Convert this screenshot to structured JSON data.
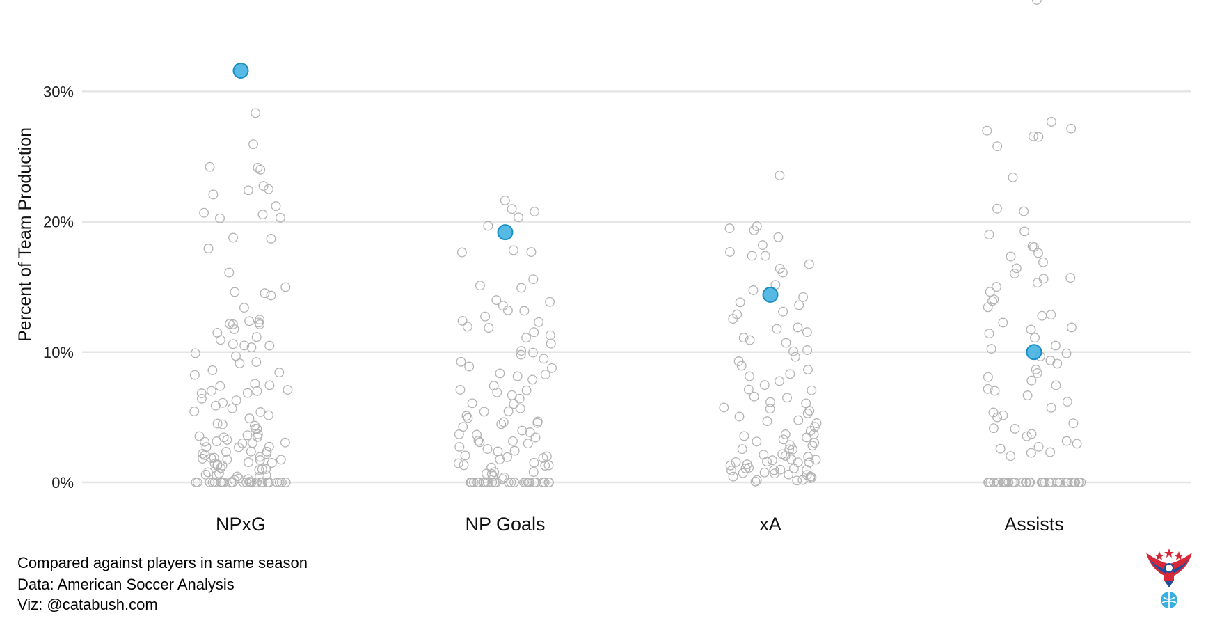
{
  "chart_data": {
    "type": "scatter",
    "subtype": "jittered strip plot",
    "ylabel": "Percent of Team Production",
    "xlabel": "",
    "ylim": [
      -1.5,
      37
    ],
    "yticks": [
      0,
      10,
      20,
      30
    ],
    "ytick_labels": [
      "0%",
      "10%",
      "20%",
      "30%"
    ],
    "categories": [
      "NPxG",
      "NP Goals",
      "xA",
      "Assists"
    ],
    "grid": "horizontal major gridlines",
    "legend": "none",
    "colors": {
      "highlight": "#3aaee0",
      "highlight_stroke": "#1a8fc4",
      "others": "#b3b3b3",
      "gridline": "#e5e5e5"
    },
    "highlight": {
      "name": "selected player",
      "values": [
        31.6,
        19.2,
        14.4,
        10.0
      ]
    },
    "others": [
      {
        "category": "NPxG",
        "values": [
          28.4,
          25.8,
          24.1,
          24.1,
          23.9,
          22.8,
          22.6,
          22.5,
          22.0,
          21.1,
          20.7,
          20.6,
          20.3,
          20.2,
          18.8,
          18.8,
          18.0,
          16.1,
          15.0,
          14.6,
          14.5,
          14.4,
          13.3,
          12.6,
          12.5,
          12.3,
          12.2,
          12.2,
          12.0,
          11.9,
          11.6,
          11.3,
          11.0,
          10.7,
          10.5,
          10.4,
          10.3,
          9.9,
          9.7,
          9.3,
          9.0,
          8.6,
          8.4,
          8.2,
          7.6,
          7.4,
          7.3,
          7.1,
          7.0,
          6.9,
          6.8,
          6.7,
          6.5,
          6.2,
          6.0,
          5.8,
          5.7,
          5.5,
          5.3,
          5.0,
          4.8,
          4.6,
          4.5,
          4.3,
          4.1,
          4.0,
          3.8,
          3.7,
          3.5,
          3.4,
          3.3,
          3.2,
          3.1,
          3.0,
          2.9,
          2.8,
          2.7,
          2.6,
          2.5,
          2.4,
          2.3,
          2.2,
          2.1,
          2.0,
          1.9,
          1.8,
          1.7,
          1.6,
          1.5,
          1.4,
          1.3,
          1.2,
          1.1,
          1.0,
          0.9,
          0.8,
          0.7,
          0.6,
          0.5,
          0.4,
          0.3,
          0.2,
          0.1,
          0,
          0,
          0,
          0,
          0,
          0,
          0,
          0,
          0,
          0,
          0,
          0,
          0,
          0,
          0,
          0,
          0,
          0,
          0,
          0,
          0,
          0,
          0,
          0,
          2.3,
          1.8,
          1.4,
          1.1,
          0.9,
          0.6,
          0.3,
          3.6,
          2.9,
          2.0,
          1.2
        ]
      },
      {
        "category": "NP Goals",
        "values": [
          21.6,
          21.1,
          20.8,
          20.3,
          19.8,
          17.8,
          17.7,
          17.5,
          15.5,
          15.2,
          14.8,
          14.0,
          13.8,
          13.5,
          13.2,
          13.1,
          12.8,
          12.5,
          12.3,
          12.0,
          11.8,
          11.5,
          11.2,
          11.0,
          10.6,
          10.2,
          10.0,
          9.8,
          9.5,
          9.2,
          9.0,
          8.8,
          8.5,
          8.3,
          8.0,
          7.8,
          7.5,
          7.2,
          7.0,
          6.8,
          6.5,
          6.2,
          6.0,
          5.8,
          5.5,
          5.2,
          5.0,
          4.8,
          4.5,
          4.2,
          4.0,
          3.8,
          3.6,
          3.4,
          3.2,
          3.0,
          2.8,
          2.6,
          2.4,
          2.2,
          2.0,
          1.8,
          1.6,
          1.4,
          1.2,
          1.0,
          0.8,
          0.6,
          0.4,
          0.2,
          0,
          0,
          0,
          0,
          0,
          0,
          0,
          0,
          0,
          0,
          0,
          0,
          0,
          0,
          0,
          0,
          0,
          0,
          0,
          0,
          0,
          0,
          0,
          0,
          0,
          0,
          0,
          3.9,
          3.1,
          2.5,
          1.9,
          1.3,
          0.7,
          4.4,
          3.3,
          2.1,
          1.5,
          0.9,
          0.5,
          6.6,
          5.6,
          4.7
        ]
      },
      {
        "category": "xA",
        "values": [
          23.7,
          19.7,
          19.6,
          19.2,
          18.7,
          18.1,
          17.6,
          17.4,
          17.3,
          16.8,
          16.5,
          16.1,
          15.3,
          14.8,
          14.3,
          13.8,
          13.5,
          13.0,
          12.8,
          12.5,
          12.0,
          11.8,
          11.5,
          11.0,
          10.8,
          10.6,
          10.2,
          10.0,
          9.7,
          9.4,
          9.0,
          8.7,
          8.4,
          8.1,
          7.8,
          7.5,
          7.2,
          7.0,
          6.7,
          6.4,
          6.1,
          5.8,
          5.5,
          5.2,
          5.0,
          4.7,
          4.4,
          4.1,
          3.8,
          3.6,
          3.4,
          3.2,
          3.0,
          2.8,
          2.6,
          2.4,
          2.2,
          2.0,
          1.9,
          1.8,
          1.7,
          1.6,
          1.5,
          1.4,
          1.3,
          1.2,
          1.1,
          1.0,
          0.9,
          0.8,
          0.7,
          0.6,
          0.5,
          0.4,
          0.3,
          0.2,
          0.1,
          0.2,
          0.3,
          0.4,
          0.5,
          0.6,
          0.8,
          1.0,
          1.2,
          1.4,
          1.6,
          1.8,
          2.1,
          2.5,
          2.9,
          3.3,
          3.7,
          4.2,
          4.8,
          5.4,
          6.0
        ]
      },
      {
        "category": "Assists",
        "values": [
          36.9,
          27.6,
          27.3,
          27.0,
          26.7,
          26.6,
          25.7,
          23.3,
          21.0,
          20.9,
          19.2,
          19.1,
          18.2,
          18.0,
          17.7,
          17.3,
          16.9,
          16.5,
          16.0,
          15.8,
          15.5,
          15.3,
          15.0,
          14.5,
          14.1,
          13.8,
          13.5,
          13.0,
          12.7,
          12.2,
          12.0,
          11.7,
          11.4,
          11.0,
          10.6,
          10.3,
          10.0,
          9.6,
          9.3,
          9.0,
          8.8,
          8.5,
          8.2,
          7.9,
          7.6,
          7.3,
          7.0,
          6.6,
          6.2,
          5.8,
          5.3,
          5.2,
          4.9,
          4.6,
          4.3,
          4.0,
          3.8,
          3.5,
          3.2,
          3.0,
          2.8,
          2.6,
          2.4,
          2.2,
          2.0,
          0,
          0,
          0,
          0,
          0,
          0,
          0,
          0,
          0,
          0,
          0,
          0,
          0,
          0,
          0,
          0,
          0,
          0,
          0,
          0,
          0,
          0,
          0,
          0,
          0,
          0,
          0,
          0,
          0,
          0,
          0,
          0,
          0,
          0,
          0,
          0,
          0,
          0,
          0,
          0,
          0
        ]
      }
    ]
  },
  "captions": {
    "line1": "Compared against players in same season",
    "line2": "Data: American Soccer Analysis",
    "line3": "Viz: @catabush.com"
  },
  "logo": {
    "icon": "eagle-soccer-logo-icon",
    "colors": [
      "#d62839",
      "#1f4e9c",
      "#3aaee0"
    ]
  }
}
